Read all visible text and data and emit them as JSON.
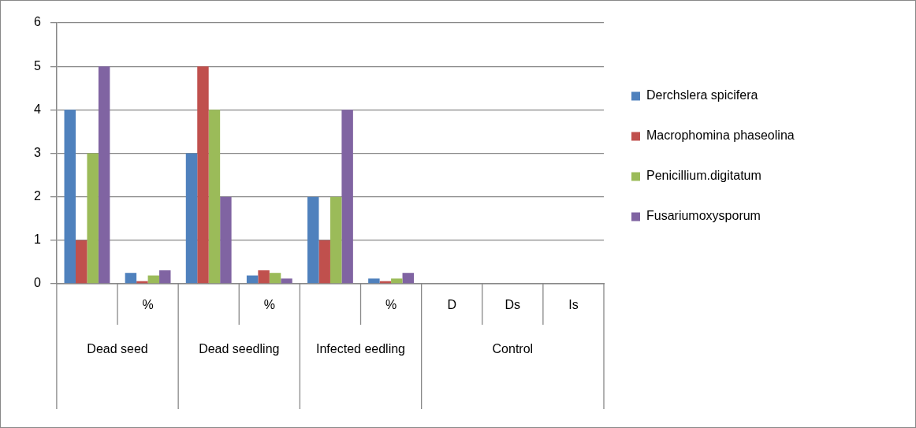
{
  "chart_data": {
    "type": "bar",
    "categories": [
      null,
      "%",
      null,
      "%",
      null,
      "%",
      "D",
      "Ds",
      "Is"
    ],
    "series": [
      {
        "name": "Derchslera spicifera",
        "color": "#4f81bd",
        "values": [
          4,
          0.25,
          3,
          0.19,
          2,
          0.12,
          null,
          null,
          null
        ]
      },
      {
        "name": "Macrophomina phaseolina",
        "color": "#c0504d",
        "values": [
          1,
          0.06,
          5,
          0.31,
          1,
          0.06,
          null,
          null,
          null
        ]
      },
      {
        "name": "Penicillium.digitatum",
        "color": "#9bbb59",
        "values": [
          3,
          0.19,
          4,
          0.25,
          2,
          0.12,
          null,
          null,
          null
        ]
      },
      {
        "name": "Fusariumoxysporum",
        "color": "#8064a2",
        "values": [
          5,
          0.31,
          2,
          0.12,
          4,
          0.25,
          null,
          null,
          null
        ]
      }
    ],
    "ylim": [
      0,
      6
    ],
    "yticks": [
      0,
      1,
      2,
      3,
      4,
      5,
      6
    ],
    "grid": "y",
    "legend": "right",
    "annotations": [
      "Dead seed",
      "Dead seedling",
      "Infected eedling",
      "Control"
    ]
  }
}
